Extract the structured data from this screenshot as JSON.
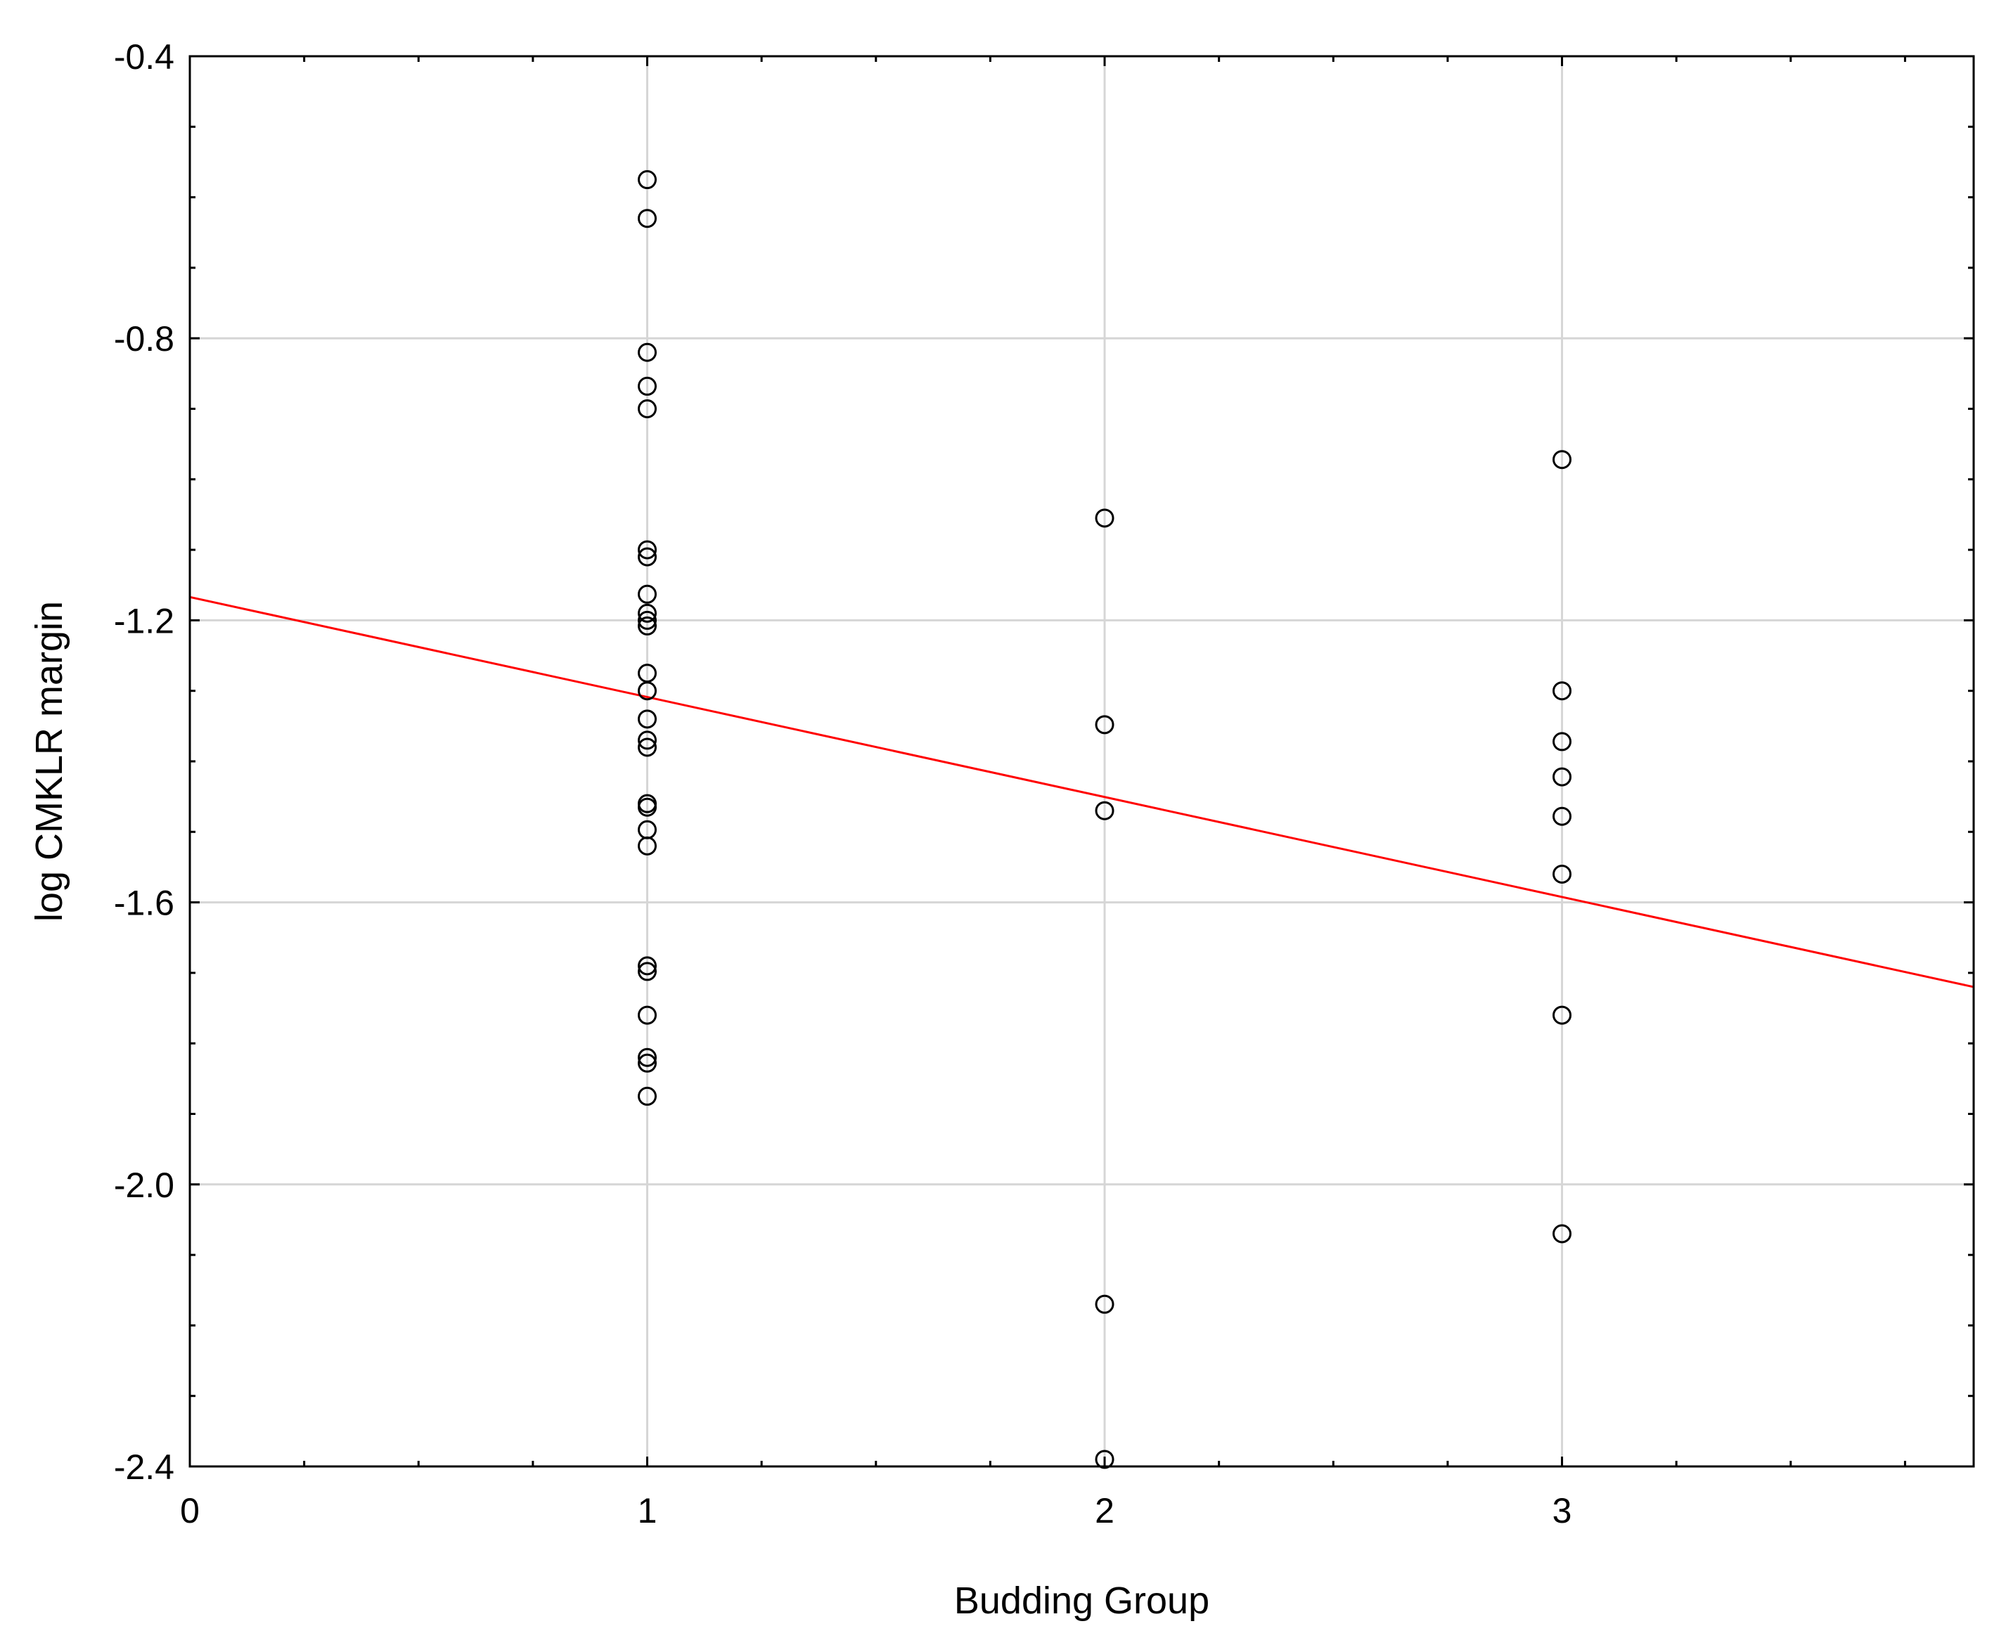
{
  "chart_data": {
    "type": "scatter",
    "title": "",
    "xlabel": "Budding Group",
    "ylabel": "log CMKLR margin",
    "xlim": [
      0,
      3.9
    ],
    "ylim": [
      -2.4,
      -0.4
    ],
    "x_ticks": [
      0,
      1,
      2,
      3
    ],
    "x_tick_labels": [
      "0",
      "1",
      "2",
      "3"
    ],
    "y_ticks": [
      -0.4,
      -0.8,
      -1.2,
      -1.6,
      -2.0,
      -2.4
    ],
    "y_tick_labels": [
      "-0.4",
      "-0.8",
      "-1.2",
      "-1.6",
      "-2.0",
      "-2.4"
    ],
    "grid": true,
    "series": [
      {
        "marker": "open-circle",
        "color": "#000000",
        "points": [
          [
            1,
            -0.575
          ],
          [
            1,
            -0.63
          ],
          [
            1,
            -0.82
          ],
          [
            1,
            -0.868
          ],
          [
            1,
            -0.9
          ],
          [
            1,
            -1.1
          ],
          [
            1,
            -1.11
          ],
          [
            1,
            -1.163
          ],
          [
            1,
            -1.19
          ],
          [
            1,
            -1.2
          ],
          [
            1,
            -1.208
          ],
          [
            1,
            -1.275
          ],
          [
            1,
            -1.3
          ],
          [
            1,
            -1.34
          ],
          [
            1,
            -1.37
          ],
          [
            1,
            -1.38
          ],
          [
            1,
            -1.46
          ],
          [
            1,
            -1.465
          ],
          [
            1,
            -1.497
          ],
          [
            1,
            -1.52
          ],
          [
            1,
            -1.69
          ],
          [
            1,
            -1.698
          ],
          [
            1,
            -1.76
          ],
          [
            1,
            -1.82
          ],
          [
            1,
            -1.828
          ],
          [
            1,
            -1.875
          ],
          [
            2,
            -1.055
          ],
          [
            2,
            -1.348
          ],
          [
            2,
            -1.47
          ],
          [
            2,
            -2.17
          ],
          [
            2,
            -2.39
          ],
          [
            3,
            -0.972
          ],
          [
            3,
            -1.3
          ],
          [
            3,
            -1.372
          ],
          [
            3,
            -1.422
          ],
          [
            3,
            -1.478
          ],
          [
            3,
            -1.56
          ],
          [
            3,
            -1.76
          ],
          [
            3,
            -2.07
          ]
        ]
      }
    ],
    "fit_line": {
      "color": "#ff0000",
      "x": [
        0,
        3.9
      ],
      "y": [
        -1.167,
        -1.72
      ]
    }
  }
}
